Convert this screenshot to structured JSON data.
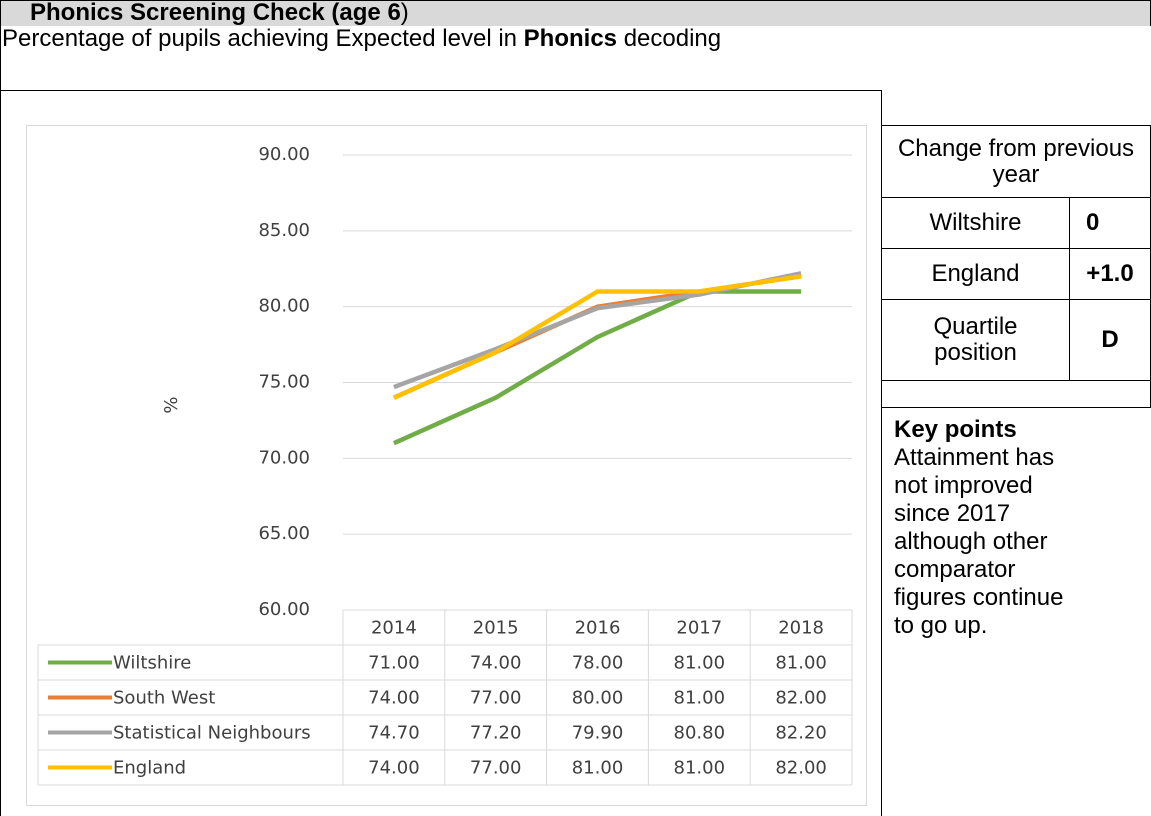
{
  "header": {
    "title": [
      "Phonics Screening Check (age 6",
      ")"
    ],
    "subtitle": [
      "Percentage of pupils achieving Expected level in ",
      "Phonics",
      " decoding"
    ]
  },
  "chart_data": {
    "type": "line",
    "y_label": "%",
    "categories": [
      "2014",
      "2015",
      "2016",
      "2017",
      "2018"
    ],
    "series": [
      {
        "name": "Wiltshire",
        "color": "#70ad47",
        "values": [
          71,
          74,
          78,
          81,
          81
        ],
        "value_labels": [
          "71.00",
          "74.00",
          "78.00",
          "81.00",
          "81.00"
        ]
      },
      {
        "name": "South West",
        "color": "#ed7d31",
        "values": [
          74,
          77,
          80,
          81,
          82
        ],
        "value_labels": [
          "74.00",
          "77.00",
          "80.00",
          "81.00",
          "82.00"
        ]
      },
      {
        "name": "Statistical Neighbours",
        "color": "#a5a5a5",
        "values": [
          74.7,
          77.2,
          79.9,
          80.8,
          82.2
        ],
        "value_labels": [
          "74.70",
          "77.20",
          "79.90",
          "80.80",
          "82.20"
        ]
      },
      {
        "name": "England",
        "color": "#ffc000",
        "values": [
          74,
          77,
          81,
          81,
          82
        ],
        "value_labels": [
          "74.00",
          "77.00",
          "81.00",
          "81.00",
          "82.00"
        ]
      }
    ],
    "ylim": [
      60,
      90
    ],
    "yticks": [
      {
        "value": 60,
        "label": "60.00"
      },
      {
        "value": 65,
        "label": "65.00"
      },
      {
        "value": 70,
        "label": "70.00"
      },
      {
        "value": 75,
        "label": "75.00"
      },
      {
        "value": 80,
        "label": "80.00"
      },
      {
        "value": 85,
        "label": "85.00"
      },
      {
        "value": 90,
        "label": "90.00"
      }
    ],
    "grid": true
  },
  "side": {
    "heading": "Change from previous year",
    "rows": [
      [
        "Wiltshire",
        "0"
      ],
      [
        "England",
        "+1.0"
      ],
      [
        "Quartile position",
        "D"
      ]
    ],
    "key_heading": "Key points",
    "key_text": "Attainment has not improved since 2017 although other comparator figures continue to go up."
  }
}
